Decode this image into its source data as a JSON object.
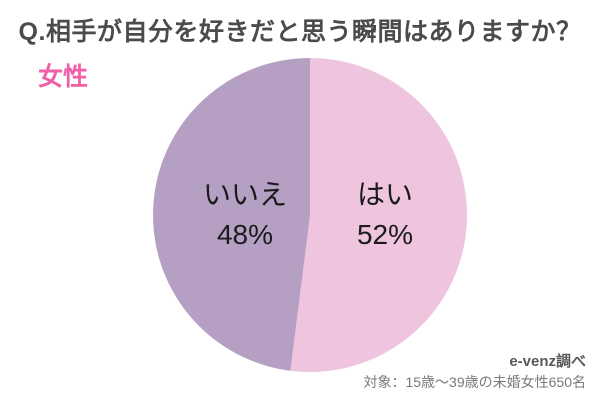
{
  "title": "Q.相手が自分を好きだと思う瞬間はありますか？",
  "group_label": "女性",
  "source": {
    "credit": "e-venz調べ",
    "sample": "対象：15歳〜39歳の未婚女性650名"
  },
  "colors": {
    "background": "#ffffff",
    "title_text": "#4b4b4b",
    "group_label_text": "#f05fa8",
    "slice_label_text": "#1b1b1b",
    "source_credit_text": "#595959",
    "source_sample_text": "#7a7a7a"
  },
  "chart_data": {
    "type": "pie",
    "title": "Q.相手が自分を好きだと思う瞬間はありますか？",
    "group": "女性",
    "slices": [
      {
        "label": "はい",
        "value": 52,
        "pct_label": "52%",
        "color": "#eec4df"
      },
      {
        "label": "いいえ",
        "value": 48,
        "pct_label": "48%",
        "color": "#b5a0c4"
      }
    ],
    "start_angle_deg": 0,
    "direction": "clockwise",
    "legend_position": "none",
    "labels_inside": true
  }
}
